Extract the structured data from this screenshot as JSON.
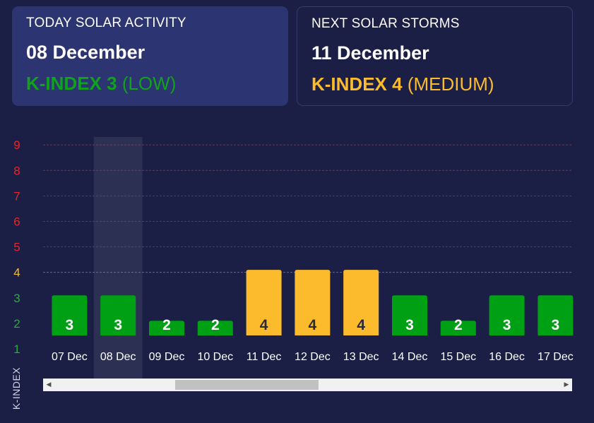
{
  "today_card": {
    "caption": "TODAY SOLAR ACTIVITY",
    "date": "08 December",
    "kindex_label": "K-INDEX 3",
    "level": "(LOW)",
    "color": "#0fa31a"
  },
  "next_card": {
    "caption": "NEXT SOLAR STORMS",
    "date": "11 December",
    "kindex_label": "K-INDEX 4",
    "level": "(MEDIUM)",
    "color": "#fbbb2c"
  },
  "chart_data": {
    "type": "bar",
    "categories": [
      "07 Dec",
      "08 Dec",
      "09 Dec",
      "10 Dec",
      "11 Dec",
      "12 Dec",
      "13 Dec",
      "14 Dec",
      "15 Dec",
      "16 Dec",
      "17 Dec"
    ],
    "values": [
      3,
      3,
      2,
      2,
      4,
      4,
      4,
      3,
      2,
      3,
      3
    ],
    "ylabel": "K-INDEX",
    "ylim": [
      1,
      9
    ],
    "y_ticks": [
      1,
      2,
      3,
      4,
      5,
      6,
      7,
      8,
      9
    ],
    "highlighted_category": "08 Dec",
    "colors": {
      "low": "#00a014",
      "medium": "#fbbb2c",
      "high": "#e5262c"
    },
    "tick_colors": {
      "low": "#2cab3c",
      "medium": "#fbbb2c",
      "high": "#e5262c"
    }
  },
  "scrollbar": {
    "left_arrow": "◀",
    "right_arrow": "▶"
  }
}
